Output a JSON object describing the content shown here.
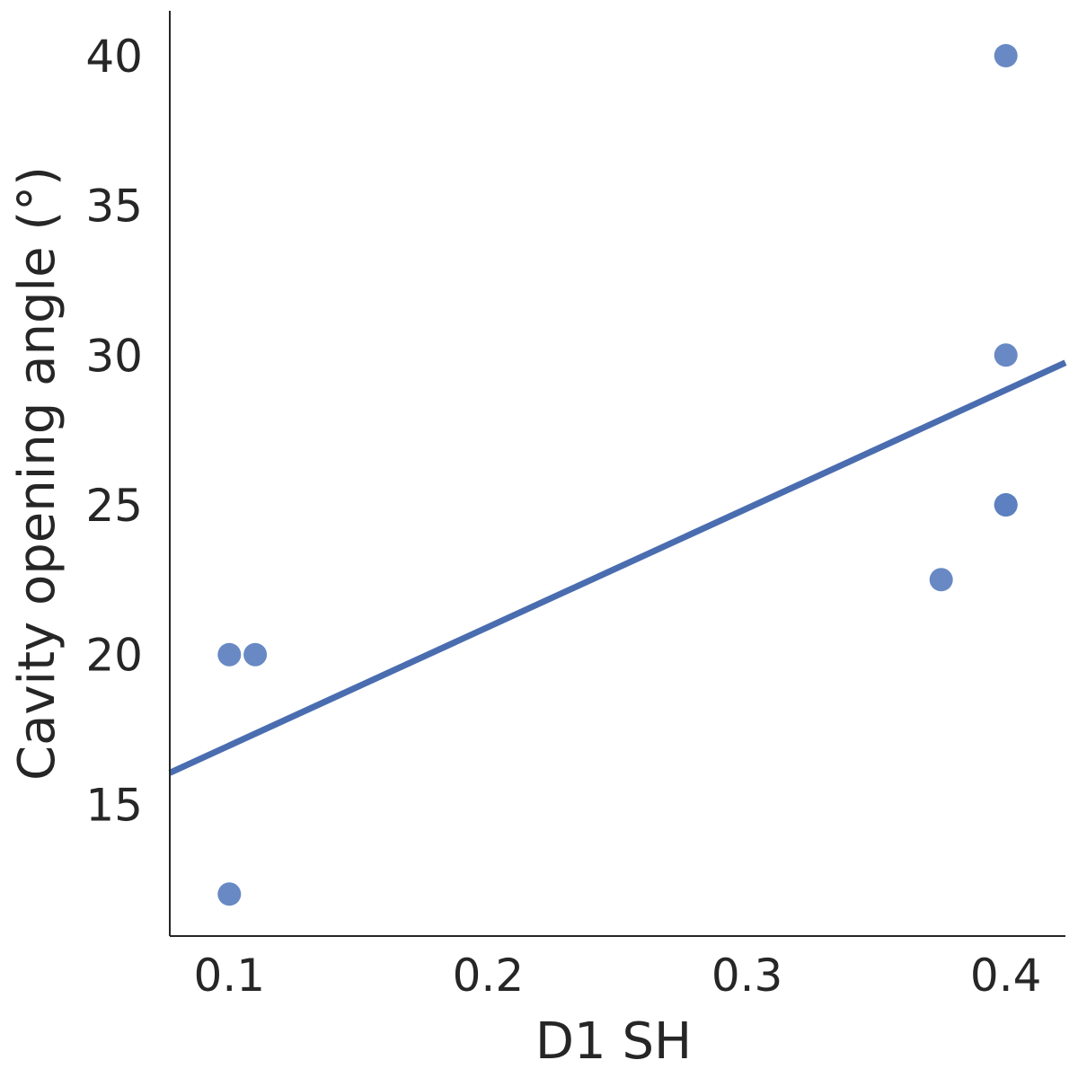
{
  "chart_data": {
    "type": "scatter",
    "title": "",
    "xlabel": "D1 SH",
    "ylabel": "Cavity opening angle (°)",
    "xlim": [
      0.077,
      0.423
    ],
    "ylim": [
      10.6,
      41.5
    ],
    "xticks": [
      0.1,
      0.2,
      0.3,
      0.4
    ],
    "xtick_labels": [
      "0.1",
      "0.2",
      "0.3",
      "0.4"
    ],
    "yticks": [
      15,
      20,
      25,
      30,
      35,
      40
    ],
    "ytick_labels": [
      "15",
      "20",
      "25",
      "30",
      "35",
      "40"
    ],
    "grid": false,
    "series": [
      {
        "name": "observations",
        "kind": "scatter",
        "color": "#5b7fbf",
        "x": [
          0.1,
          0.11,
          0.1,
          0.375,
          0.4,
          0.4,
          0.4,
          0.4
        ],
        "y": [
          20,
          20,
          12,
          22.5,
          25,
          25,
          30,
          40
        ]
      },
      {
        "name": "regression-line",
        "kind": "line",
        "color": "#4a6db0",
        "x": [
          0.077,
          0.423
        ],
        "y": [
          16.05,
          29.75
        ]
      }
    ]
  }
}
